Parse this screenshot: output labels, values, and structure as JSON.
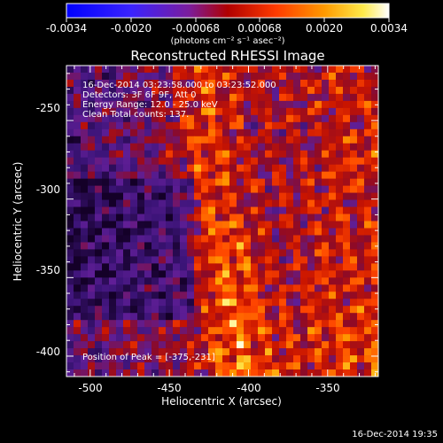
{
  "colorbar": {
    "ticks": [
      "-0.0034",
      "-0.0020",
      "-0.00068",
      "0.00068",
      "0.0020",
      "0.0034"
    ],
    "units_label": "(photons cm⁻² s⁻¹ asec⁻²)"
  },
  "image": {
    "title": "Reconstructed RHESSI Image",
    "info_lines": [
      "16-Dec-2014 03:23:58.000 to 03:23:52.000",
      "Detectors: 3F 6F 9F, Att 0",
      "Energy Range: 12.0 - 25.0 keV",
      "Clean    Total counts: 137."
    ],
    "peak_text": "Position of Peak = [-375,-231]",
    "colormap": "black-purple-red-orange-yellow-white"
  },
  "axes": {
    "xlabel": "Heliocentric X (arcsec)",
    "ylabel": "Heliocentric Y (arcsec)",
    "x_ticks": [
      "-500",
      "-450",
      "-400",
      "-350"
    ],
    "y_ticks": [
      "-250",
      "-300",
      "-350",
      "-400"
    ],
    "x_range": [
      -515,
      -318
    ],
    "y_range": [
      -413,
      -215
    ]
  },
  "footer": {
    "date": "16-Dec-2014 19:35"
  }
}
